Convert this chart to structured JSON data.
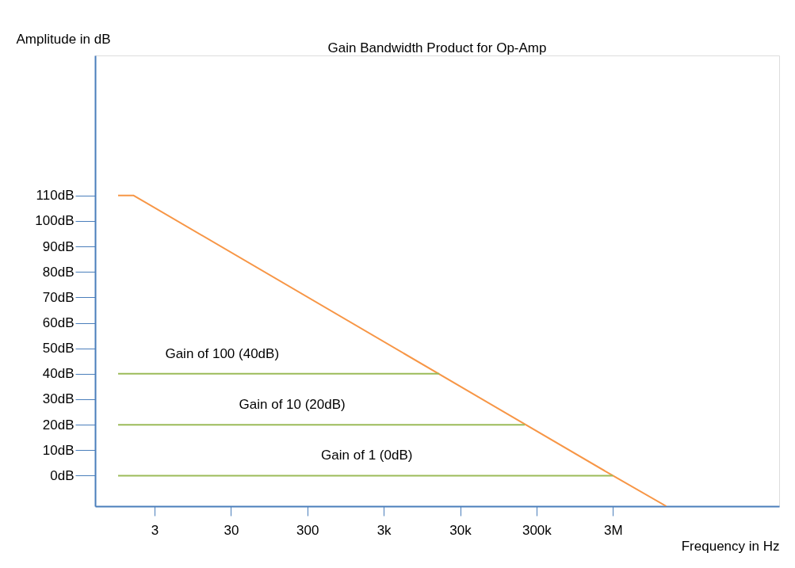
{
  "chart_data": {
    "type": "line",
    "title": "Gain Bandwidth Product for Op-Amp",
    "xlabel": "Frequency in Hz",
    "ylabel": "Amplitude in dB",
    "log": "x",
    "xlim": [
      0.5,
      450000000
    ],
    "ylim": [
      -12,
      165
    ],
    "xticks": [
      3,
      30,
      300,
      {
        "value": 3000,
        "label": "3k"
      },
      {
        "value": 30000,
        "label": "30k"
      },
      {
        "value": 300000,
        "label": "300k"
      },
      {
        "value": 3000000,
        "label": "3M"
      }
    ],
    "yticks": [
      {
        "value": 0,
        "label": "0dB"
      },
      {
        "value": 10,
        "label": "10dB"
      },
      {
        "value": 20,
        "label": "20dB"
      },
      {
        "value": 30,
        "label": "30dB"
      },
      {
        "value": 40,
        "label": "40dB"
      },
      {
        "value": 50,
        "label": "50dB"
      },
      {
        "value": 60,
        "label": "60dB"
      },
      {
        "value": 70,
        "label": "70dB"
      },
      {
        "value": 80,
        "label": "80dB"
      },
      {
        "value": 90,
        "label": "90dB"
      },
      {
        "value": 100,
        "label": "100dB"
      },
      {
        "value": 110,
        "label": "110dB"
      }
    ],
    "series": [
      {
        "color": "#f79646",
        "x": [
          1,
          1.6,
          3000000,
          15000000
        ],
        "values": [
          110,
          110,
          0,
          -12
        ]
      },
      {
        "color": "#9bbb59",
        "x": [
          1,
          16000
        ],
        "values": [
          40,
          40
        ]
      },
      {
        "color": "#9bbb59",
        "x": [
          1,
          210000
        ],
        "values": [
          20,
          20
        ]
      },
      {
        "color": "#9bbb59",
        "x": [
          1,
          3000000
        ],
        "values": [
          0,
          0
        ]
      }
    ],
    "annotations": [
      {
        "text": "Gain of 100 (40dB)",
        "x": 23,
        "y": 40
      },
      {
        "text": "Gain of 10 (20dB)",
        "x": 190,
        "y": 20
      },
      {
        "text": "Gain of 1 (0dB)",
        "x": 1800,
        "y": 0
      }
    ],
    "grid": false,
    "legend": false,
    "marker": "none",
    "line_style": "solid"
  }
}
